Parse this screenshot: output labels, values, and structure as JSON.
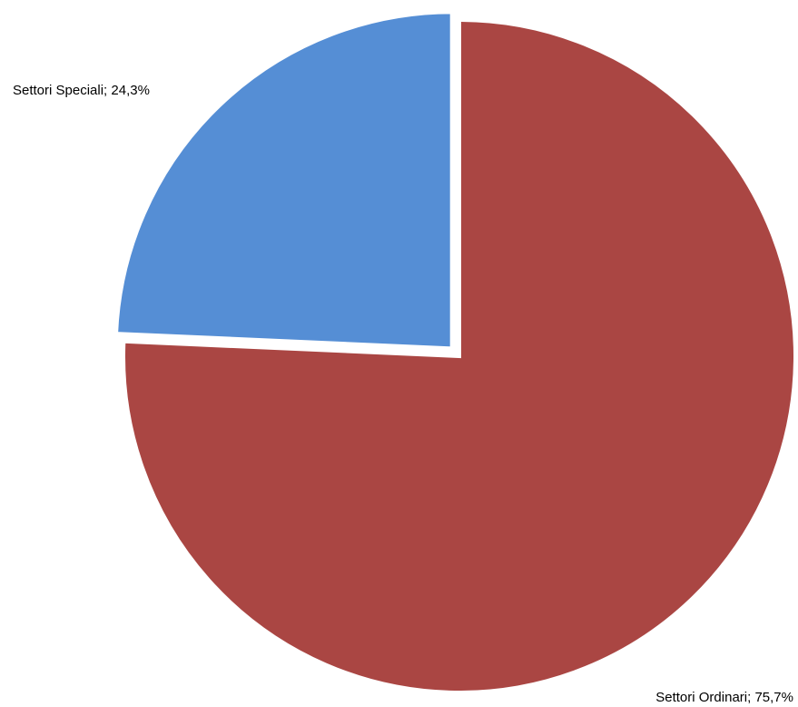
{
  "chart_data": {
    "type": "pie",
    "title": "",
    "series": [
      {
        "name": "",
        "slices": [
          {
            "label": "Settori Speciali",
            "value": 24.3,
            "value_label": "24,3%",
            "color": "#558ED5",
            "exploded": true,
            "label_text": "Settori Speciali; 24,3%"
          },
          {
            "label": "Settori Ordinari",
            "value": 75.7,
            "value_label": "75,7%",
            "color": "#AA4643",
            "exploded": false,
            "label_text": "Settori Ordinari; 75,7%"
          }
        ]
      }
    ],
    "legend": "none",
    "start_angle": "12 o'clock",
    "direction": "counter-clockwise for Settori Speciali, clockwise for Settori Ordinari"
  }
}
